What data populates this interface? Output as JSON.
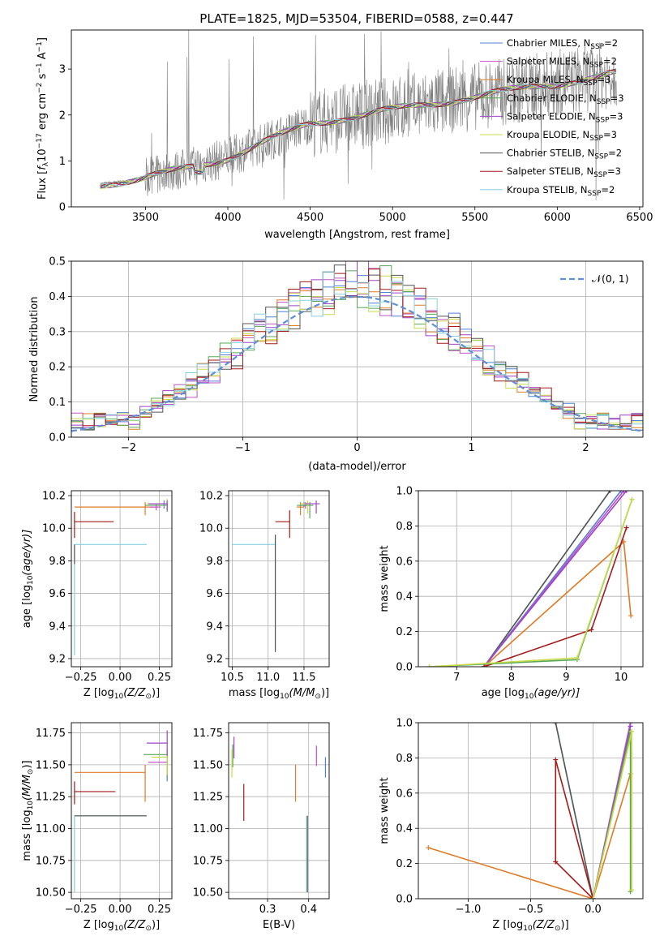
{
  "figure": {
    "title": "PLATE=1825, MJD=53504, FIBERID=0588, z=0.447",
    "colors": {
      "chab_miles": "#4f81d6",
      "salp_miles": "#c450c4",
      "krou_miles": "#e07b26",
      "chab_elodie": "#58a858",
      "salp_elodie": "#9d45c9",
      "krou_elodie": "#c8dc4a",
      "chab_stelib": "#555555",
      "salp_stelib": "#a51a1a",
      "krou_stelib": "#86d0de",
      "spectrum": "#7f7f7f",
      "normal": "#5f8fd6"
    }
  },
  "chart_data": [
    {
      "id": "spectrum",
      "type": "line",
      "xlabel": "wavelength [Angstrom, rest frame]",
      "ylabel_main": "Flux [",
      "ylabel_f": "f",
      "ylabel_lambda": "λ",
      "ylabel_rest": "10",
      "ylabel_exp1": "−17",
      "ylabel_erg": " erg cm",
      "ylabel_exp2": "−2",
      "ylabel_s": " s",
      "ylabel_exp3": "−1",
      "ylabel_A": " A",
      "ylabel_exp4": "−1",
      "ylabel_close": "]",
      "xlim": [
        3050,
        6520
      ],
      "ylim": [
        0,
        3.85
      ],
      "xticks": [
        3500,
        4000,
        4500,
        5000,
        5500,
        6000,
        6500
      ],
      "yticks": [
        0,
        1,
        2,
        3
      ],
      "xrange_data": [
        3225,
        6360
      ],
      "legend_position": "right",
      "legend": [
        {
          "key": "chab_miles",
          "label": "Chabrier MILES, N",
          "sub": "SSP",
          "suffix": "=2"
        },
        {
          "key": "salp_miles",
          "label": "Salpeter MILES, N",
          "sub": "SSP",
          "suffix": "=2"
        },
        {
          "key": "krou_miles",
          "label": "Kroupa MILES, N",
          "sub": "SSP",
          "suffix": "=3"
        },
        {
          "key": "chab_elodie",
          "label": "Chabrier ELODIE, N",
          "sub": "SSP",
          "suffix": "=3"
        },
        {
          "key": "salp_elodie",
          "label": "Salpeter ELODIE, N",
          "sub": "SSP",
          "suffix": "=3"
        },
        {
          "key": "krou_elodie",
          "label": "Kroupa ELODIE, N",
          "sub": "SSP",
          "suffix": "=3"
        },
        {
          "key": "chab_stelib",
          "label": "Chabrier STELIB, N",
          "sub": "SSP",
          "suffix": "=2"
        },
        {
          "key": "salp_stelib",
          "label": "Salpeter STELIB, N",
          "sub": "SSP",
          "suffix": "=3"
        },
        {
          "key": "krou_stelib",
          "label": "Kroupa STELIB, N",
          "sub": "SSP",
          "suffix": "=2"
        }
      ]
    },
    {
      "id": "residuals",
      "type": "step",
      "xlabel": "(data-model)/error",
      "ylabel": "Normed distribution",
      "xlim": [
        -2.5,
        2.5
      ],
      "ylim": [
        0,
        0.5
      ],
      "xticks": [
        -2,
        -1,
        0,
        1,
        2
      ],
      "xtick_labels": [
        "−2",
        "−1",
        "0",
        "1",
        "2"
      ],
      "yticks": [
        0,
        0.1,
        0.2,
        0.3,
        0.4,
        0.5
      ],
      "ytick_labels": [
        "0.0",
        "0.1",
        "0.2",
        "0.3",
        "0.4",
        "0.5"
      ],
      "grid": true,
      "bin_width": 0.1,
      "legend_label": "𝒩(0, 1)"
    },
    {
      "id": "age_vs_Z",
      "type": "errorbar",
      "xlabel": "Z [log",
      "xlabel_sub": "10",
      "xlabel_rest": "(Z/Z",
      "xlabel_sun": "⊙",
      "xlabel_end": ")]",
      "ylabel": "age  [log",
      "ylabel_sub": "10",
      "ylabel_rest": "(age/yr)]",
      "xlim": [
        -0.31,
        0.33
      ],
      "ylim": [
        9.15,
        10.23
      ],
      "xticks": [
        -0.25,
        0,
        0.25
      ],
      "xtick_labels": [
        "−0.25",
        "0.00",
        "0.25"
      ],
      "yticks": [
        9.2,
        9.4,
        9.6,
        9.8,
        10.0,
        10.2
      ],
      "ytick_labels": [
        "9.2",
        "9.4",
        "9.6",
        "9.8",
        "10.0",
        "10.2"
      ],
      "points": [
        {
          "key": "krou_stelib",
          "x": -0.29,
          "y": 9.9,
          "xerr": [
            0,
            0.46
          ],
          "yerr": [
            0.68,
            0
          ]
        },
        {
          "key": "chab_stelib",
          "x": -0.29,
          "y": 9.9,
          "xerr": [
            0,
            0.0
          ],
          "yerr": [
            0.12,
            0
          ]
        },
        {
          "key": "salp_stelib",
          "x": -0.29,
          "y": 10.04,
          "xerr": [
            0,
            0.25
          ],
          "yerr": [
            0.1,
            0.06
          ]
        },
        {
          "key": "krou_miles",
          "x": 0.16,
          "y": 10.13,
          "xerr": [
            0.45,
            0.05
          ],
          "yerr": [
            0.05,
            0.03
          ]
        },
        {
          "key": "salp_miles",
          "x": 0.23,
          "y": 10.13,
          "xerr": [
            0.04,
            0.03
          ],
          "yerr": [
            0.02,
            0.02
          ]
        },
        {
          "key": "chab_miles",
          "x": 0.28,
          "y": 10.15,
          "xerr": [
            0.1,
            0.02
          ],
          "yerr": [
            0.03,
            0.02
          ]
        },
        {
          "key": "chab_elodie",
          "x": 0.3,
          "y": 10.14,
          "xerr": [
            0.14,
            0.0
          ],
          "yerr": [
            0.04,
            0.02
          ]
        },
        {
          "key": "krou_elodie",
          "x": 0.3,
          "y": 10.15,
          "xerr": [
            0.13,
            0.0
          ],
          "yerr": [
            0.02,
            0.03
          ]
        },
        {
          "key": "salp_elodie",
          "x": 0.3,
          "y": 10.15,
          "xerr": [
            0.12,
            0.0
          ],
          "yerr": [
            0.04,
            0.02
          ]
        }
      ]
    },
    {
      "id": "age_vs_mass",
      "type": "errorbar",
      "xlabel": "mass [log",
      "xlabel_sub": "10",
      "xlabel_rest": "(M/M",
      "xlabel_sun": "⊙",
      "xlabel_end": ")]",
      "xlim": [
        10.45,
        11.85
      ],
      "ylim": [
        9.15,
        10.23
      ],
      "xticks": [
        10.5,
        11.0,
        11.5
      ],
      "xtick_labels": [
        "10.5",
        "11.0",
        "11.5"
      ],
      "yticks": [
        9.2,
        9.4,
        9.6,
        9.8,
        10.0,
        10.2
      ],
      "ytick_labels": [
        "9.2",
        "9.4",
        "9.6",
        "9.8",
        "10.0",
        "10.2"
      ],
      "points": [
        {
          "key": "krou_stelib",
          "x": 11.1,
          "y": 9.9,
          "xerr": [
            0.6,
            0.0
          ],
          "yerr": [
            0.65,
            0.06
          ]
        },
        {
          "key": "chab_stelib",
          "x": 11.1,
          "y": 9.9,
          "xerr": [
            0.0,
            0.0
          ],
          "yerr": [
            0.66,
            0.06
          ]
        },
        {
          "key": "salp_stelib",
          "x": 11.3,
          "y": 10.04,
          "xerr": [
            0.2,
            0.0
          ],
          "yerr": [
            0.1,
            0.07
          ]
        },
        {
          "key": "krou_miles",
          "x": 11.45,
          "y": 10.13,
          "xerr": [
            0.05,
            0.05
          ],
          "yerr": [
            0.05,
            0.03
          ]
        },
        {
          "key": "salp_miles",
          "x": 11.52,
          "y": 10.14,
          "xerr": [
            0.06,
            0.04
          ],
          "yerr": [
            0.02,
            0.02
          ]
        },
        {
          "key": "chab_miles",
          "x": 11.5,
          "y": 10.15,
          "xerr": [
            0.03,
            0.04
          ],
          "yerr": [
            0.02,
            0.01
          ]
        },
        {
          "key": "chab_elodie",
          "x": 11.58,
          "y": 10.14,
          "xerr": [
            0.18,
            0.05
          ],
          "yerr": [
            0.08,
            0.02
          ]
        },
        {
          "key": "krou_elodie",
          "x": 11.55,
          "y": 10.15,
          "xerr": [
            0.1,
            0.03
          ],
          "yerr": [
            0.06,
            0.02
          ]
        },
        {
          "key": "salp_elodie",
          "x": 11.67,
          "y": 10.15,
          "xerr": [
            0.15,
            0.05
          ],
          "yerr": [
            0.06,
            0.02
          ]
        }
      ]
    },
    {
      "id": "weight_vs_age",
      "type": "line",
      "xlabel": "age  [log",
      "xlabel_sub": "10",
      "xlabel_rest": "(age/yr)]",
      "ylabel": "mass weight",
      "xlim": [
        6.3,
        10.4
      ],
      "ylim": [
        0,
        1
      ],
      "xticks": [
        7,
        8,
        9,
        10
      ],
      "xtick_labels": [
        "7",
        "8",
        "9",
        "10"
      ],
      "yticks": [
        0,
        0.2,
        0.4,
        0.6,
        0.8,
        1.0
      ],
      "ytick_labels": [
        "0.0",
        "0.2",
        "0.4",
        "0.6",
        "0.8",
        "1.0"
      ],
      "grid": true,
      "series": [
        {
          "key": "krou_stelib",
          "x": [
            7.5,
            9.8
          ],
          "y": [
            0.0,
            1.0
          ]
        },
        {
          "key": "chab_stelib",
          "x": [
            7.5,
            9.8
          ],
          "y": [
            0.0,
            1.0
          ]
        },
        {
          "key": "chab_miles",
          "x": [
            7.5,
            10.0
          ],
          "y": [
            0.0,
            1.0
          ]
        },
        {
          "key": "salp_miles",
          "x": [
            7.5,
            10.05
          ],
          "y": [
            0.0,
            1.0
          ]
        },
        {
          "key": "salp_elodie",
          "x": [
            7.5,
            10.1
          ],
          "y": [
            0.0,
            1.0
          ]
        },
        {
          "key": "krou_miles",
          "x": [
            7.5,
            10.05,
            10.18
          ],
          "y": [
            0.0,
            0.71,
            0.29
          ]
        },
        {
          "key": "salp_stelib",
          "x": [
            7.5,
            9.46,
            10.1
          ],
          "y": [
            0.0,
            0.21,
            0.79
          ]
        },
        {
          "key": "chab_elodie",
          "x": [
            6.5,
            9.2,
            10.2
          ],
          "y": [
            0.0,
            0.04,
            0.95
          ]
        },
        {
          "key": "krou_elodie",
          "x": [
            6.5,
            9.2,
            10.2
          ],
          "y": [
            0.0,
            0.05,
            0.95
          ]
        }
      ]
    },
    {
      "id": "mass_vs_Z",
      "type": "errorbar",
      "xlabel": "Z [log",
      "xlabel_sub": "10",
      "xlabel_rest": "(Z/Z",
      "xlabel_sun": "⊙",
      "xlabel_end": ")]",
      "ylabel": "mass [log",
      "ylabel_sub": "10",
      "ylabel_rest": "(M/M",
      "ylabel_sun": "⊙",
      "ylabel_end": ")]",
      "xlim": [
        -0.31,
        0.33
      ],
      "ylim": [
        10.45,
        11.83
      ],
      "xticks": [
        -0.25,
        0,
        0.25
      ],
      "xtick_labels": [
        "−0.25",
        "0.00",
        "0.25"
      ],
      "yticks": [
        10.5,
        10.75,
        11.0,
        11.25,
        11.5,
        11.75
      ],
      "ytick_labels": [
        "10.50",
        "10.75",
        "11.00",
        "11.25",
        "11.50",
        "11.75"
      ],
      "points": [
        {
          "key": "krou_stelib",
          "x": -0.29,
          "y": 11.1,
          "xerr": [
            0,
            0.45
          ],
          "yerr": [
            0.6,
            0
          ]
        },
        {
          "key": "chab_stelib",
          "x": -0.29,
          "y": 11.1,
          "xerr": [
            0,
            0.46
          ],
          "yerr": [
            0.0,
            0
          ]
        },
        {
          "key": "salp_stelib",
          "x": -0.29,
          "y": 11.29,
          "xerr": [
            0,
            0.26
          ],
          "yerr": [
            0.1,
            0.08
          ]
        },
        {
          "key": "krou_miles",
          "x": 0.16,
          "y": 11.44,
          "xerr": [
            0.45,
            0
          ],
          "yerr": [
            0.23,
            0.06
          ]
        },
        {
          "key": "salp_miles",
          "x": 0.3,
          "y": 11.52,
          "xerr": [
            0.12,
            0
          ],
          "yerr": [
            0.05,
            0.05
          ]
        },
        {
          "key": "chab_miles",
          "x": 0.3,
          "y": 11.47,
          "xerr": [
            0.0,
            0
          ],
          "yerr": [
            0.1,
            0.04
          ]
        },
        {
          "key": "chab_elodie",
          "x": 0.3,
          "y": 11.58,
          "xerr": [
            0.15,
            0
          ],
          "yerr": [
            0.18,
            0.04
          ]
        },
        {
          "key": "krou_elodie",
          "x": 0.3,
          "y": 11.56,
          "xerr": [
            0.1,
            0
          ],
          "yerr": [
            0.14,
            0.05
          ]
        },
        {
          "key": "salp_elodie",
          "x": 0.3,
          "y": 11.67,
          "xerr": [
            0.13,
            0
          ],
          "yerr": [
            0.1,
            0.1
          ]
        }
      ]
    },
    {
      "id": "mass_vs_ebv",
      "type": "errorbar",
      "xlabel": "E(B-V)",
      "xlim": [
        0.205,
        0.45
      ],
      "ylim": [
        10.45,
        11.83
      ],
      "xticks": [
        0.3,
        0.4
      ],
      "xtick_labels": [
        "0.3",
        "0.4"
      ],
      "yticks": [
        10.5,
        10.75,
        11.0,
        11.25,
        11.5,
        11.75
      ],
      "ytick_labels": [
        "10.50",
        "10.75",
        "11.00",
        "11.25",
        "11.50",
        "11.75"
      ],
      "points": [
        {
          "key": "krou_stelib",
          "x": 0.395,
          "y": 11.1,
          "xerr": [
            0,
            0
          ],
          "yerr": [
            0.6,
            0.0
          ]
        },
        {
          "key": "chab_stelib",
          "x": 0.397,
          "y": 11.1,
          "xerr": [
            0,
            0
          ],
          "yerr": [
            0.6,
            0.0
          ]
        },
        {
          "key": "salp_stelib",
          "x": 0.242,
          "y": 11.29,
          "xerr": [
            0,
            0
          ],
          "yerr": [
            0.23,
            0.06
          ]
        },
        {
          "key": "krou_miles",
          "x": 0.368,
          "y": 11.44,
          "xerr": [
            0,
            0
          ],
          "yerr": [
            0.23,
            0.06
          ]
        },
        {
          "key": "salp_miles",
          "x": 0.419,
          "y": 11.57,
          "xerr": [
            0,
            0
          ],
          "yerr": [
            0.08,
            0.08
          ]
        },
        {
          "key": "chab_miles",
          "x": 0.441,
          "y": 11.5,
          "xerr": [
            0,
            0
          ],
          "yerr": [
            0.1,
            0.06
          ]
        },
        {
          "key": "chab_elodie",
          "x": 0.215,
          "y": 11.6,
          "xerr": [
            0,
            0
          ],
          "yerr": [
            0.12,
            0.06
          ]
        },
        {
          "key": "krou_elodie",
          "x": 0.213,
          "y": 11.56,
          "xerr": [
            0,
            0
          ],
          "yerr": [
            0.16,
            0.06
          ]
        },
        {
          "key": "salp_elodie",
          "x": 0.218,
          "y": 11.67,
          "xerr": [
            0,
            0
          ],
          "yerr": [
            0.12,
            0.05
          ]
        }
      ]
    },
    {
      "id": "weight_vs_Z",
      "type": "line",
      "xlabel": "Z [log",
      "xlabel_sub": "10",
      "xlabel_rest": "(Z/Z",
      "xlabel_sun": "⊙",
      "xlabel_end": ")]",
      "ylabel": "mass weight",
      "xlim": [
        -1.4,
        0.4
      ],
      "ylim": [
        0,
        1
      ],
      "xticks": [
        -1.0,
        -0.5,
        0.0
      ],
      "xtick_labels": [
        "−1.0",
        "−0.5",
        "0.0"
      ],
      "yticks": [
        0,
        0.2,
        0.4,
        0.6,
        0.8,
        1.0
      ],
      "ytick_labels": [
        "0.0",
        "0.2",
        "0.4",
        "0.6",
        "0.8",
        "1.0"
      ],
      "grid": true,
      "series": [
        {
          "key": "krou_stelib",
          "x": [
            -0.3,
            0.0
          ],
          "y": [
            1.0,
            0.0
          ]
        },
        {
          "key": "chab_stelib",
          "x": [
            -0.3,
            0.0
          ],
          "y": [
            1.0,
            0.0
          ]
        },
        {
          "key": "chab_miles",
          "x": [
            0.0,
            0.3
          ],
          "y": [
            0.0,
            1.0
          ]
        },
        {
          "key": "salp_miles",
          "x": [
            0.0,
            0.3
          ],
          "y": [
            0.0,
            1.0
          ]
        },
        {
          "key": "salp_elodie",
          "x": [
            0.0,
            0.3
          ],
          "y": [
            0.0,
            0.98
          ]
        },
        {
          "key": "krou_miles",
          "x": [
            -1.32,
            0.0,
            0.3
          ],
          "y": [
            0.29,
            0.0,
            0.71
          ]
        },
        {
          "key": "salp_stelib",
          "x": [
            -0.3,
            -0.3,
            0.0,
            -0.3
          ],
          "y": [
            0.21,
            0.79,
            0.0,
            0.21
          ]
        },
        {
          "key": "chab_elodie",
          "x": [
            0.3,
            0.3,
            0.0
          ],
          "y": [
            0.04,
            0.95,
            0.0
          ]
        },
        {
          "key": "krou_elodie",
          "x": [
            0.31,
            0.31,
            0.0
          ],
          "y": [
            0.05,
            0.95,
            0.0
          ]
        }
      ]
    }
  ]
}
